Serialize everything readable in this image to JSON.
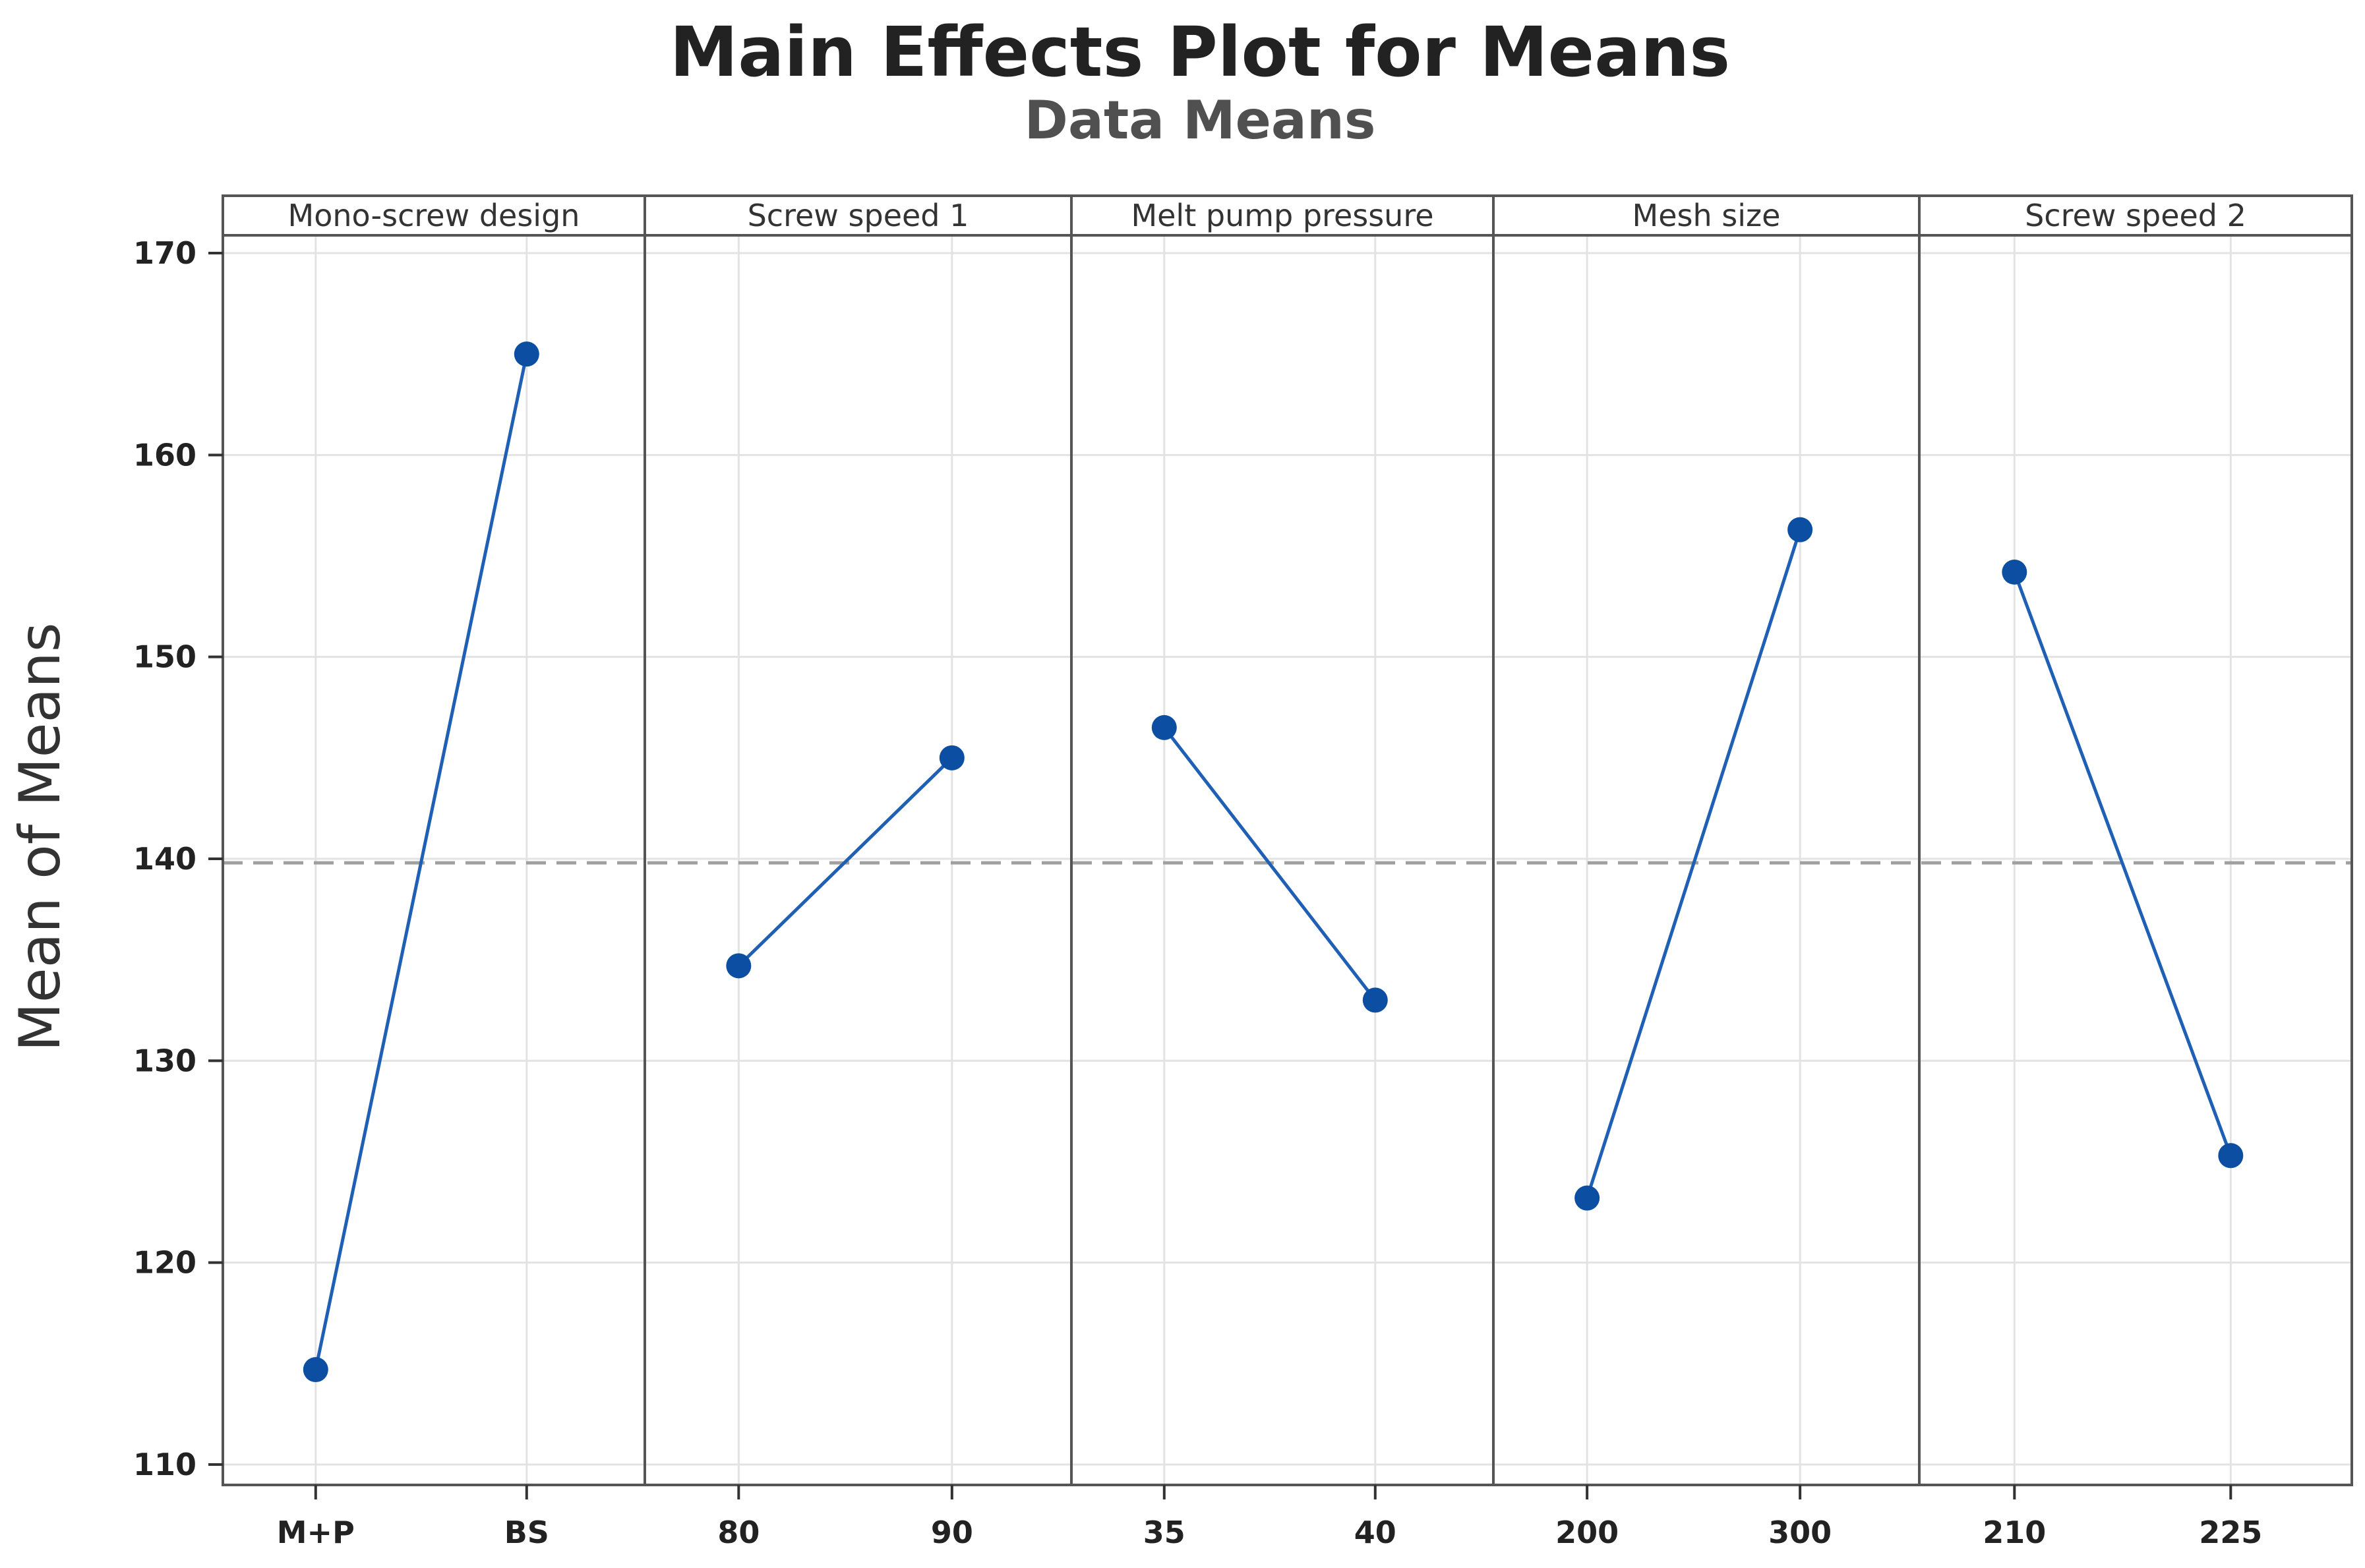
{
  "chart_data": {
    "type": "line",
    "title": "Main Effects Plot for Means",
    "subtitle": "Data Means",
    "ylabel": "Mean of Means",
    "ylim": [
      110,
      170
    ],
    "yticks": [
      110,
      120,
      130,
      140,
      150,
      160,
      170
    ],
    "reference_line": 139.8,
    "grid": true,
    "series_color": "#1f5fb4",
    "marker_color": "#0b4ea2",
    "reference_color": "#a0a0a0",
    "panels": [
      {
        "factor": "Mono-screw design",
        "levels": [
          "M+P",
          "BS"
        ],
        "values": [
          114.7,
          165.0
        ]
      },
      {
        "factor": "Screw speed 1",
        "levels": [
          "80",
          "90"
        ],
        "values": [
          134.7,
          145.0
        ]
      },
      {
        "factor": "Melt pump pressure",
        "levels": [
          "35",
          "40"
        ],
        "values": [
          146.5,
          133.0
        ]
      },
      {
        "factor": "Mesh size",
        "levels": [
          "200",
          "300"
        ],
        "values": [
          123.2,
          156.3
        ]
      },
      {
        "factor": "Screw speed 2",
        "levels": [
          "210",
          "225"
        ],
        "values": [
          154.2,
          125.3
        ]
      }
    ]
  }
}
